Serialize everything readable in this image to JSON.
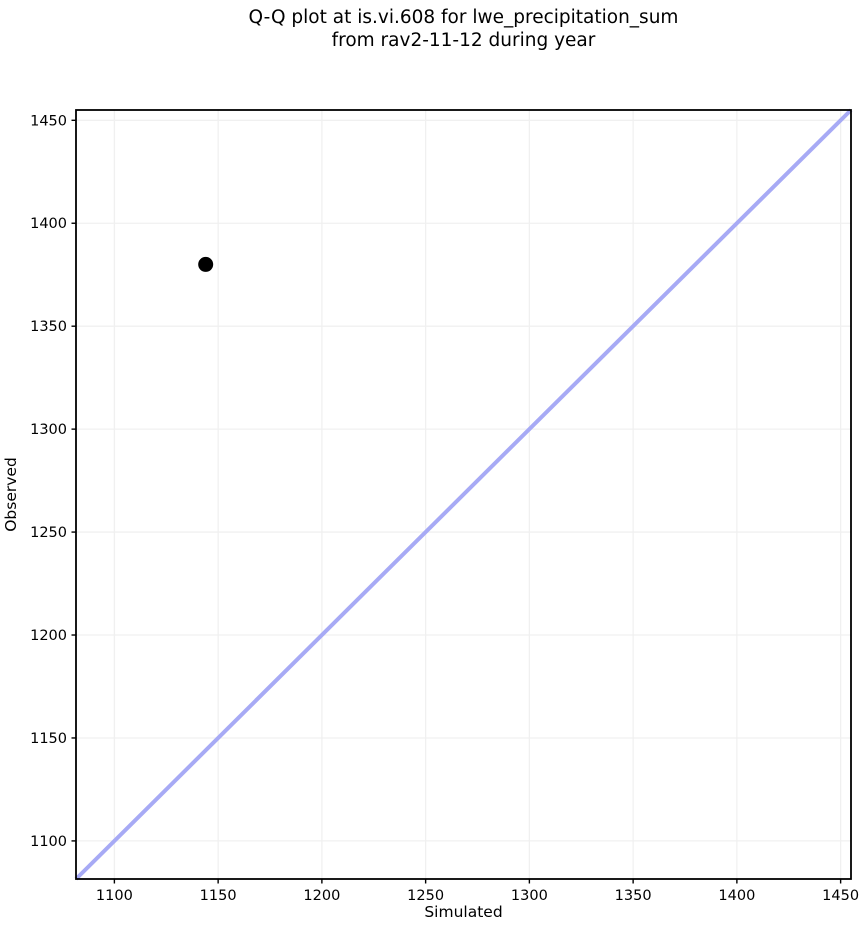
{
  "figure": {
    "background": "#ffffff",
    "text_color": "#000000"
  },
  "chart_data": {
    "type": "scatter",
    "title": "Q-Q plot at is.vi.608 for lwe_precipitation_sum\nfrom rav2-11-12 during year",
    "title_lines": [
      "Q-Q plot at is.vi.608 for lwe_precipitation_sum",
      "from rav2-11-12 during year"
    ],
    "xlabel": "Simulated",
    "ylabel": "Observed",
    "xlim": [
      1081.5,
      1455
    ],
    "ylim": [
      1081.5,
      1455
    ],
    "xticks": [
      1100,
      1150,
      1200,
      1250,
      1300,
      1350,
      1400,
      1450
    ],
    "yticks": [
      1100,
      1150,
      1200,
      1250,
      1300,
      1350,
      1400,
      1450
    ],
    "grid": true,
    "grid_color": "#f0f0f0",
    "legend": "none",
    "series": [
      {
        "name": "identity-line",
        "type": "line",
        "color": "#a7aaf5",
        "x": [
          1081.5,
          1455
        ],
        "y": [
          1081.5,
          1455
        ]
      },
      {
        "name": "observed-vs-simulated",
        "type": "scatter",
        "color": "#000000",
        "points": [
          {
            "x": 1144,
            "y": 1380
          }
        ]
      }
    ]
  }
}
